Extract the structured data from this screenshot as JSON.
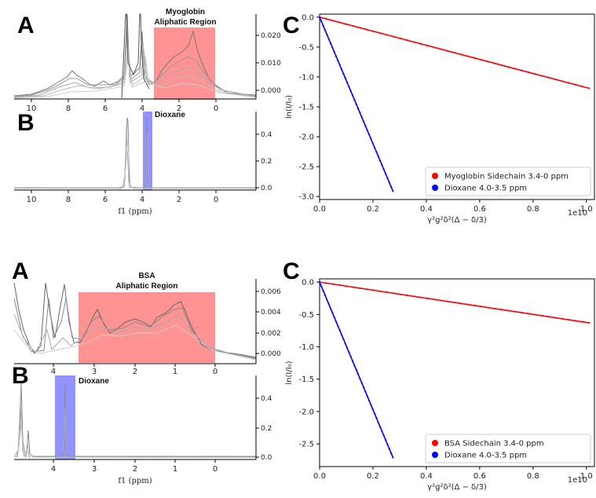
{
  "figure": {
    "top": {
      "panel_a": {
        "letter": "A",
        "region_label_line1": "Myoglobin",
        "region_label_line2": "Aliphatic Region",
        "region_ppm": [
          3.4,
          0
        ],
        "x_ticks": [
          "10",
          "8",
          "6",
          "4",
          "2",
          "0"
        ],
        "y_ticks": [
          "0.020",
          "0.010",
          "0.000"
        ],
        "region_color": "#ff8080"
      },
      "panel_b": {
        "letter": "B",
        "region_label": "Dioxane",
        "region_ppm": [
          4.0,
          3.5
        ],
        "x_ticks": [
          "10",
          "8",
          "6",
          "4",
          "2",
          "0"
        ],
        "y_ticks": [
          "0.4",
          "0.2",
          "0.0"
        ],
        "xlabel": "f1 (ppm)",
        "region_color": "#8080ff"
      },
      "panel_c": {
        "letter": "C",
        "exponent_label": "1e10"
      }
    },
    "bottom": {
      "panel_a": {
        "letter": "A",
        "region_label_line1": "BSA",
        "region_label_line2": "Aliphatic Region",
        "region_ppm": [
          3.4,
          0
        ],
        "x_ticks": [
          "4",
          "3",
          "2",
          "1",
          "0"
        ],
        "y_ticks": [
          "0.006",
          "0.004",
          "0.002",
          "0.000"
        ],
        "region_color": "#ff8080"
      },
      "panel_b": {
        "letter": "B",
        "region_label": "Dioxane",
        "region_ppm": [
          4.0,
          3.5
        ],
        "x_ticks": [
          "4",
          "3",
          "2",
          "1",
          "0"
        ],
        "y_ticks": [
          "0.4",
          "0.2",
          "0.0"
        ],
        "xlabel": "f1 (ppm)",
        "region_color": "#8080ff"
      },
      "panel_c": {
        "letter": "C",
        "exponent_label": "1e10"
      }
    }
  },
  "chart_data": [
    {
      "type": "scatter",
      "title": "",
      "xlabel": "γ²g²δ²(Δ − δ/3)",
      "ylabel": "ln(I/I₀)",
      "x_scale_label": "1e10",
      "xlim": [
        0,
        1.03
      ],
      "ylim": [
        -3.05,
        0.05
      ],
      "x_ticks": [
        "0.0",
        "0.2",
        "0.4",
        "0.6",
        "0.8",
        "1.0"
      ],
      "y_ticks": [
        "0.0",
        "-0.5",
        "-1.0",
        "-1.5",
        "-2.0",
        "-2.5",
        "-3.0"
      ],
      "legend_position": "lower-right",
      "series": [
        {
          "name": "Myoglobin Sidechain 3.4-0 ppm",
          "color": "#ff0000",
          "x": [
            0.0,
            1.01
          ],
          "y": [
            0.0,
            -1.19
          ]
        },
        {
          "name": "Dioxane 4.0-3.5 ppm",
          "color": "#0000ff",
          "x": [
            0.0,
            0.275
          ],
          "y": [
            0.0,
            -2.91
          ]
        }
      ]
    },
    {
      "type": "scatter",
      "title": "",
      "xlabel": "γ²g²δ²(Δ − δ/3)",
      "ylabel": "ln(I/I₀)",
      "x_scale_label": "1e10",
      "xlim": [
        0,
        1.03
      ],
      "ylim": [
        -2.85,
        0.05
      ],
      "x_ticks": [
        "0.0",
        "0.2",
        "0.4",
        "0.6",
        "0.8",
        "1.0"
      ],
      "y_ticks": [
        "0.0",
        "-0.5",
        "-1.0",
        "-1.5",
        "-2.0",
        "-2.5"
      ],
      "legend_position": "lower-right",
      "series": [
        {
          "name": "BSA Sidechain 3.4-0 ppm",
          "color": "#ff0000",
          "x": [
            0.0,
            1.01
          ],
          "y": [
            0.0,
            -0.63
          ]
        },
        {
          "name": "Dioxane 4.0-3.5 ppm",
          "color": "#0000ff",
          "x": [
            0.0,
            0.275
          ],
          "y": [
            0.0,
            -2.71
          ]
        }
      ]
    }
  ]
}
